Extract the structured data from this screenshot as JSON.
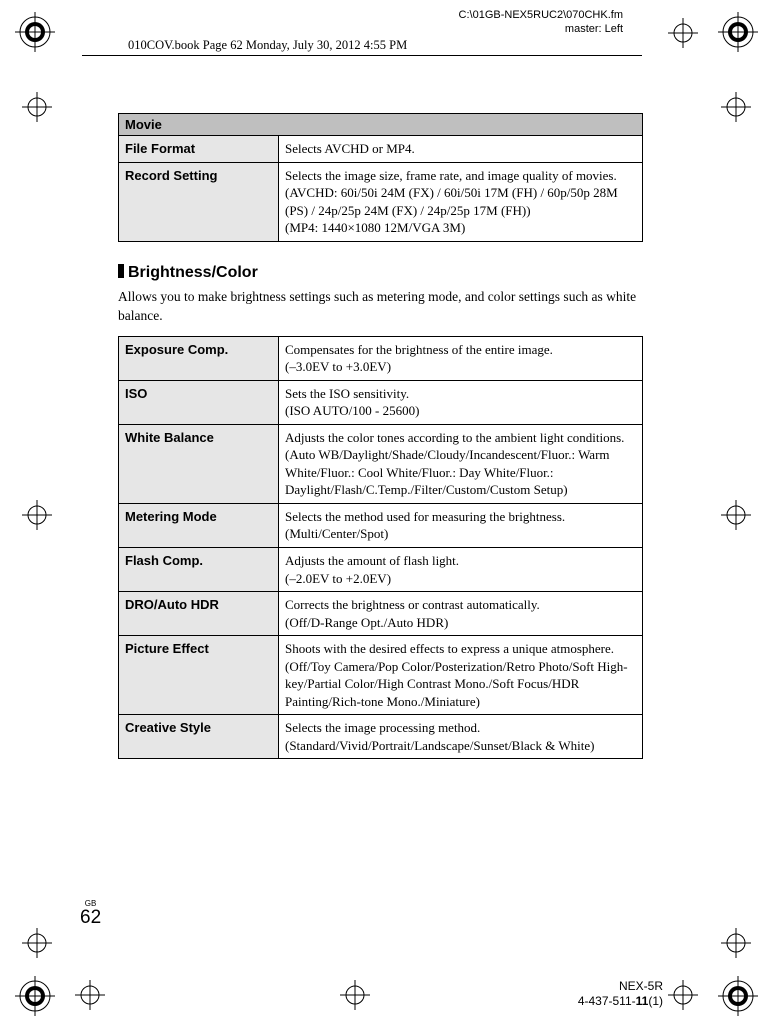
{
  "header": {
    "path": "C:\\01GB-NEX5RUC2\\070CHK.fm",
    "master": "master: Left",
    "book": "010COV.book  Page 62  Monday, July 30, 2012  4:55 PM"
  },
  "movie_table": {
    "header": "Movie",
    "rows": [
      {
        "label": "File Format",
        "desc": "Selects AVCHD or MP4."
      },
      {
        "label": "Record Setting",
        "desc": "Selects the image size, frame rate, and image quality of movies.\n(AVCHD: 60i/50i 24M (FX) / 60i/50i 17M (FH) / 60p/50p 28M (PS) / 24p/25p 24M (FX) / 24p/25p 17M (FH))\n(MP4: 1440×1080 12M/VGA 3M)"
      }
    ]
  },
  "section": {
    "title": "Brightness/Color",
    "desc": "Allows you to make brightness settings such as metering mode, and color settings such as white balance."
  },
  "bc_table": {
    "rows": [
      {
        "label": "Exposure Comp.",
        "desc": "Compensates for the brightness of the entire image.\n(–3.0EV to +3.0EV)"
      },
      {
        "label": "ISO",
        "desc": "Sets the ISO sensitivity.\n(ISO AUTO/100 - 25600)"
      },
      {
        "label": "White Balance",
        "desc": "Adjusts the color tones according to the ambient light conditions.\n(Auto WB/Daylight/Shade/Cloudy/Incandescent/Fluor.: Warm White/Fluor.: Cool White/Fluor.: Day White/Fluor.: Daylight/Flash/C.Temp./Filter/Custom/Custom Setup)"
      },
      {
        "label": "Metering Mode",
        "desc": "Selects the method used for measuring the brightness.\n(Multi/Center/Spot)"
      },
      {
        "label": "Flash Comp.",
        "desc": "Adjusts the amount of flash light.\n(–2.0EV to +2.0EV)"
      },
      {
        "label": "DRO/Auto HDR",
        "desc": "Corrects the brightness or contrast automatically.\n(Off/D-Range Opt./Auto HDR)"
      },
      {
        "label": "Picture Effect",
        "desc": "Shoots with the desired effects to express a unique atmosphere.\n(Off/Toy Camera/Pop Color/Posterization/Retro Photo/Soft High-key/Partial Color/High Contrast Mono./Soft Focus/HDR Painting/Rich-tone Mono./Miniature)"
      },
      {
        "label": "Creative Style",
        "desc": "Selects the image processing method.\n(Standard/Vivid/Portrait/Landscape/Sunset/Black & White)"
      }
    ]
  },
  "page": {
    "gb": "GB",
    "num": "62"
  },
  "footer": {
    "model": "NEX-5R",
    "part": "4-437-511-11(1)"
  },
  "reg_svg_colors": {
    "stroke": "#000000",
    "fill": "#ffffff"
  }
}
